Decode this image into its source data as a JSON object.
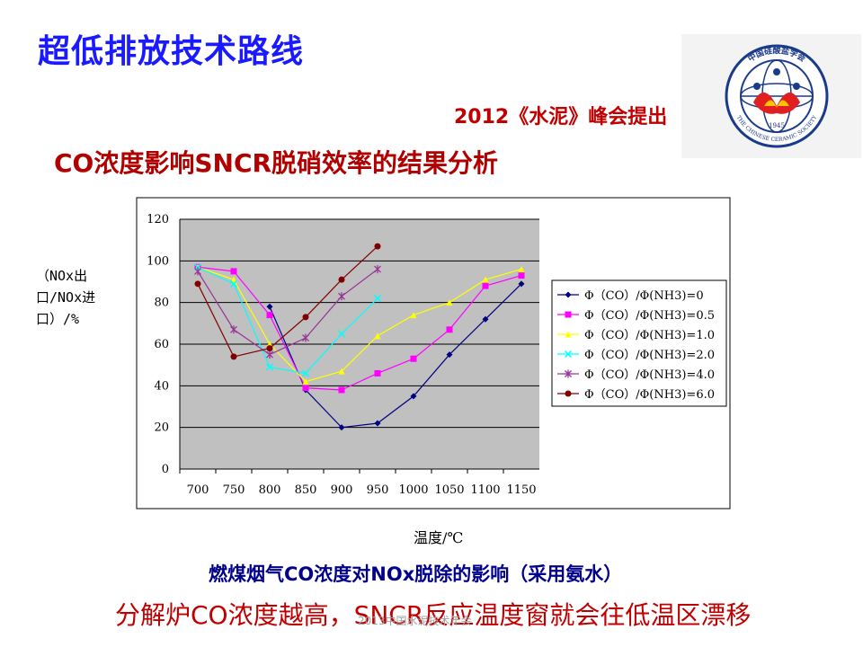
{
  "slide": {
    "title": "超低排放技术路线",
    "summit_note": "2012《水泥》峰会提出",
    "chart_heading": "CO浓度影响SNCR脱硝效率的结果分析",
    "caption": "燃煤烟气CO浓度对NOx脱除的影响（采用氨水）",
    "conclusion": "分解炉CO浓度越高，SNCR反应温度窗就会往低温区漂移",
    "footer": "2013中国水泥技术年会"
  },
  "logo": {
    "ring_text": "中国硅酸盐学会",
    "ring_text_en": "THE CHINESE CERAMIC SOCIETY",
    "year": "1945"
  },
  "colors": {
    "title": "#1a1aff",
    "heading": "#b00000",
    "caption": "#00008b",
    "plot_bg": "#c0c0c0"
  },
  "chart_data": {
    "type": "line",
    "ylabel": "（NOx出口/NOx进口）/%",
    "xlabel": "温度/℃",
    "ylim": [
      0,
      120
    ],
    "yticks": [
      0,
      20,
      40,
      60,
      80,
      100,
      120
    ],
    "categories": [
      "700",
      "750",
      "800",
      "850",
      "900",
      "950",
      "1000",
      "1050",
      "1100",
      "1150"
    ],
    "grid": true,
    "legend_position": "right",
    "series": [
      {
        "name": "Φ（CO）/Φ(NH3)=0",
        "color": "#000080",
        "marker": "diamond",
        "values": [
          null,
          null,
          78,
          38,
          20,
          22,
          35,
          55,
          72,
          89
        ]
      },
      {
        "name": "Φ（CO）/Φ(NH3)=0.5",
        "color": "#ff00ff",
        "marker": "square",
        "values": [
          97,
          95,
          74,
          39,
          38,
          46,
          53,
          67,
          88,
          93
        ]
      },
      {
        "name": "Φ（CO）/Φ(NH3)=1.0",
        "color": "#ffff00",
        "marker": "triangle",
        "values": [
          97,
          91,
          60,
          42,
          47,
          64,
          74,
          80,
          91,
          96
        ]
      },
      {
        "name": "Φ（CO）/Φ(NH3)=2.0",
        "color": "#00ffff",
        "marker": "x",
        "values": [
          97,
          89,
          49,
          46,
          65,
          82,
          null,
          null,
          null,
          null
        ]
      },
      {
        "name": "Φ（CO）/Φ(NH3)=4.0",
        "color": "#993399",
        "marker": "star",
        "values": [
          95,
          67,
          55,
          63,
          83,
          96,
          null,
          null,
          null,
          null
        ]
      },
      {
        "name": "Φ（CO）/Φ(NH3)=6.0",
        "color": "#800000",
        "marker": "circle",
        "values": [
          89,
          54,
          58,
          73,
          91,
          107,
          null,
          null,
          null,
          null
        ]
      }
    ]
  }
}
